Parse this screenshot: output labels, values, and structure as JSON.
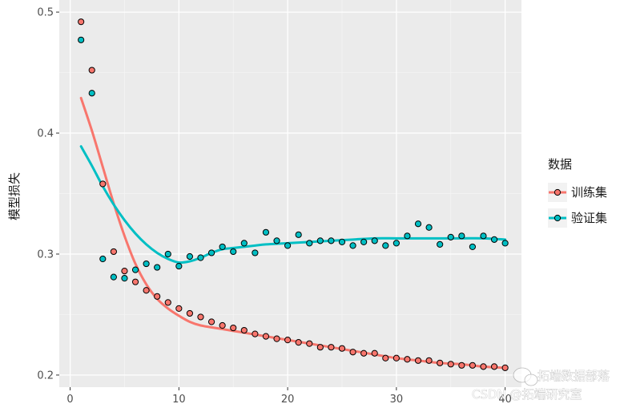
{
  "chart_data": {
    "type": "scatter",
    "title": "",
    "xlabel": "",
    "ylabel": "模型损失",
    "xlim": [
      -1,
      41.5
    ],
    "ylim": [
      0.19,
      0.51
    ],
    "x_ticks": [
      0,
      10,
      20,
      30,
      40
    ],
    "x_tick_labels": [
      "0",
      "10",
      "20",
      "30",
      "40"
    ],
    "y_ticks": [
      0.2,
      0.3,
      0.4,
      0.5
    ],
    "y_tick_labels": [
      "0.2",
      "0.3",
      "0.4",
      "0.5"
    ],
    "legend": {
      "title": "数据",
      "position": "right"
    },
    "series": [
      {
        "name": "训练集",
        "color": "#F8766D",
        "x": [
          1,
          2,
          3,
          4,
          5,
          6,
          7,
          8,
          9,
          10,
          11,
          12,
          13,
          14,
          15,
          16,
          17,
          18,
          19,
          20,
          21,
          22,
          23,
          24,
          25,
          26,
          27,
          28,
          29,
          30,
          31,
          32,
          33,
          34,
          35,
          36,
          37,
          38,
          39,
          40
        ],
        "values": [
          0.492,
          0.452,
          0.358,
          0.302,
          0.286,
          0.277,
          0.27,
          0.265,
          0.26,
          0.255,
          0.251,
          0.248,
          0.244,
          0.241,
          0.239,
          0.237,
          0.234,
          0.232,
          0.23,
          0.229,
          0.227,
          0.226,
          0.223,
          0.223,
          0.222,
          0.219,
          0.218,
          0.218,
          0.214,
          0.214,
          0.213,
          0.212,
          0.212,
          0.21,
          0.209,
          0.208,
          0.208,
          0.207,
          0.207,
          0.206
        ],
        "smooth": [
          [
            1,
            0.429
          ],
          [
            2,
            0.402
          ],
          [
            3,
            0.372
          ],
          [
            4,
            0.342
          ],
          [
            5,
            0.315
          ],
          [
            6,
            0.292
          ],
          [
            7,
            0.275
          ],
          [
            8,
            0.263
          ],
          [
            9,
            0.255
          ],
          [
            10,
            0.249
          ],
          [
            11,
            0.244
          ],
          [
            12,
            0.241
          ],
          [
            14,
            0.238
          ],
          [
            16,
            0.235
          ],
          [
            18,
            0.232
          ],
          [
            20,
            0.229
          ],
          [
            22,
            0.226
          ],
          [
            24,
            0.223
          ],
          [
            26,
            0.22
          ],
          [
            28,
            0.217
          ],
          [
            30,
            0.214
          ],
          [
            32,
            0.212
          ],
          [
            34,
            0.21
          ],
          [
            36,
            0.209
          ],
          [
            38,
            0.207
          ],
          [
            40,
            0.206
          ]
        ]
      },
      {
        "name": "验证集",
        "color": "#00BFC4",
        "x": [
          1,
          2,
          3,
          4,
          5,
          6,
          7,
          8,
          9,
          10,
          11,
          12,
          13,
          14,
          15,
          16,
          17,
          18,
          19,
          20,
          21,
          22,
          23,
          24,
          25,
          26,
          27,
          28,
          29,
          30,
          31,
          32,
          33,
          34,
          35,
          36,
          37,
          38,
          39,
          40
        ],
        "values": [
          0.477,
          0.433,
          0.296,
          0.281,
          0.28,
          0.287,
          0.292,
          0.289,
          0.3,
          0.29,
          0.298,
          0.297,
          0.301,
          0.306,
          0.302,
          0.309,
          0.301,
          0.318,
          0.311,
          0.307,
          0.316,
          0.309,
          0.311,
          0.311,
          0.31,
          0.307,
          0.31,
          0.311,
          0.307,
          0.309,
          0.315,
          0.325,
          0.322,
          0.308,
          0.314,
          0.315,
          0.306,
          0.315,
          0.312,
          0.309
        ],
        "smooth": [
          [
            1,
            0.389
          ],
          [
            2,
            0.373
          ],
          [
            3,
            0.356
          ],
          [
            4,
            0.341
          ],
          [
            5,
            0.328
          ],
          [
            6,
            0.317
          ],
          [
            7,
            0.308
          ],
          [
            8,
            0.301
          ],
          [
            9,
            0.296
          ],
          [
            10,
            0.293
          ],
          [
            11,
            0.294
          ],
          [
            12,
            0.297
          ],
          [
            13,
            0.301
          ],
          [
            14,
            0.304
          ],
          [
            15,
            0.305
          ],
          [
            16,
            0.306
          ],
          [
            17,
            0.307
          ],
          [
            18,
            0.308
          ],
          [
            20,
            0.309
          ],
          [
            22,
            0.31
          ],
          [
            24,
            0.311
          ],
          [
            26,
            0.312
          ],
          [
            28,
            0.313
          ],
          [
            30,
            0.313
          ],
          [
            32,
            0.313
          ],
          [
            34,
            0.313
          ],
          [
            36,
            0.313
          ],
          [
            38,
            0.313
          ],
          [
            40,
            0.312
          ]
        ]
      }
    ]
  },
  "watermark": {
    "line1": "拓端数据部落",
    "line2": "CSDN @拓端研究室"
  },
  "colors": {
    "panel_background": "#EBEBEB",
    "grid_major": "#FFFFFF",
    "grid_minor": "#F5F5F5"
  }
}
